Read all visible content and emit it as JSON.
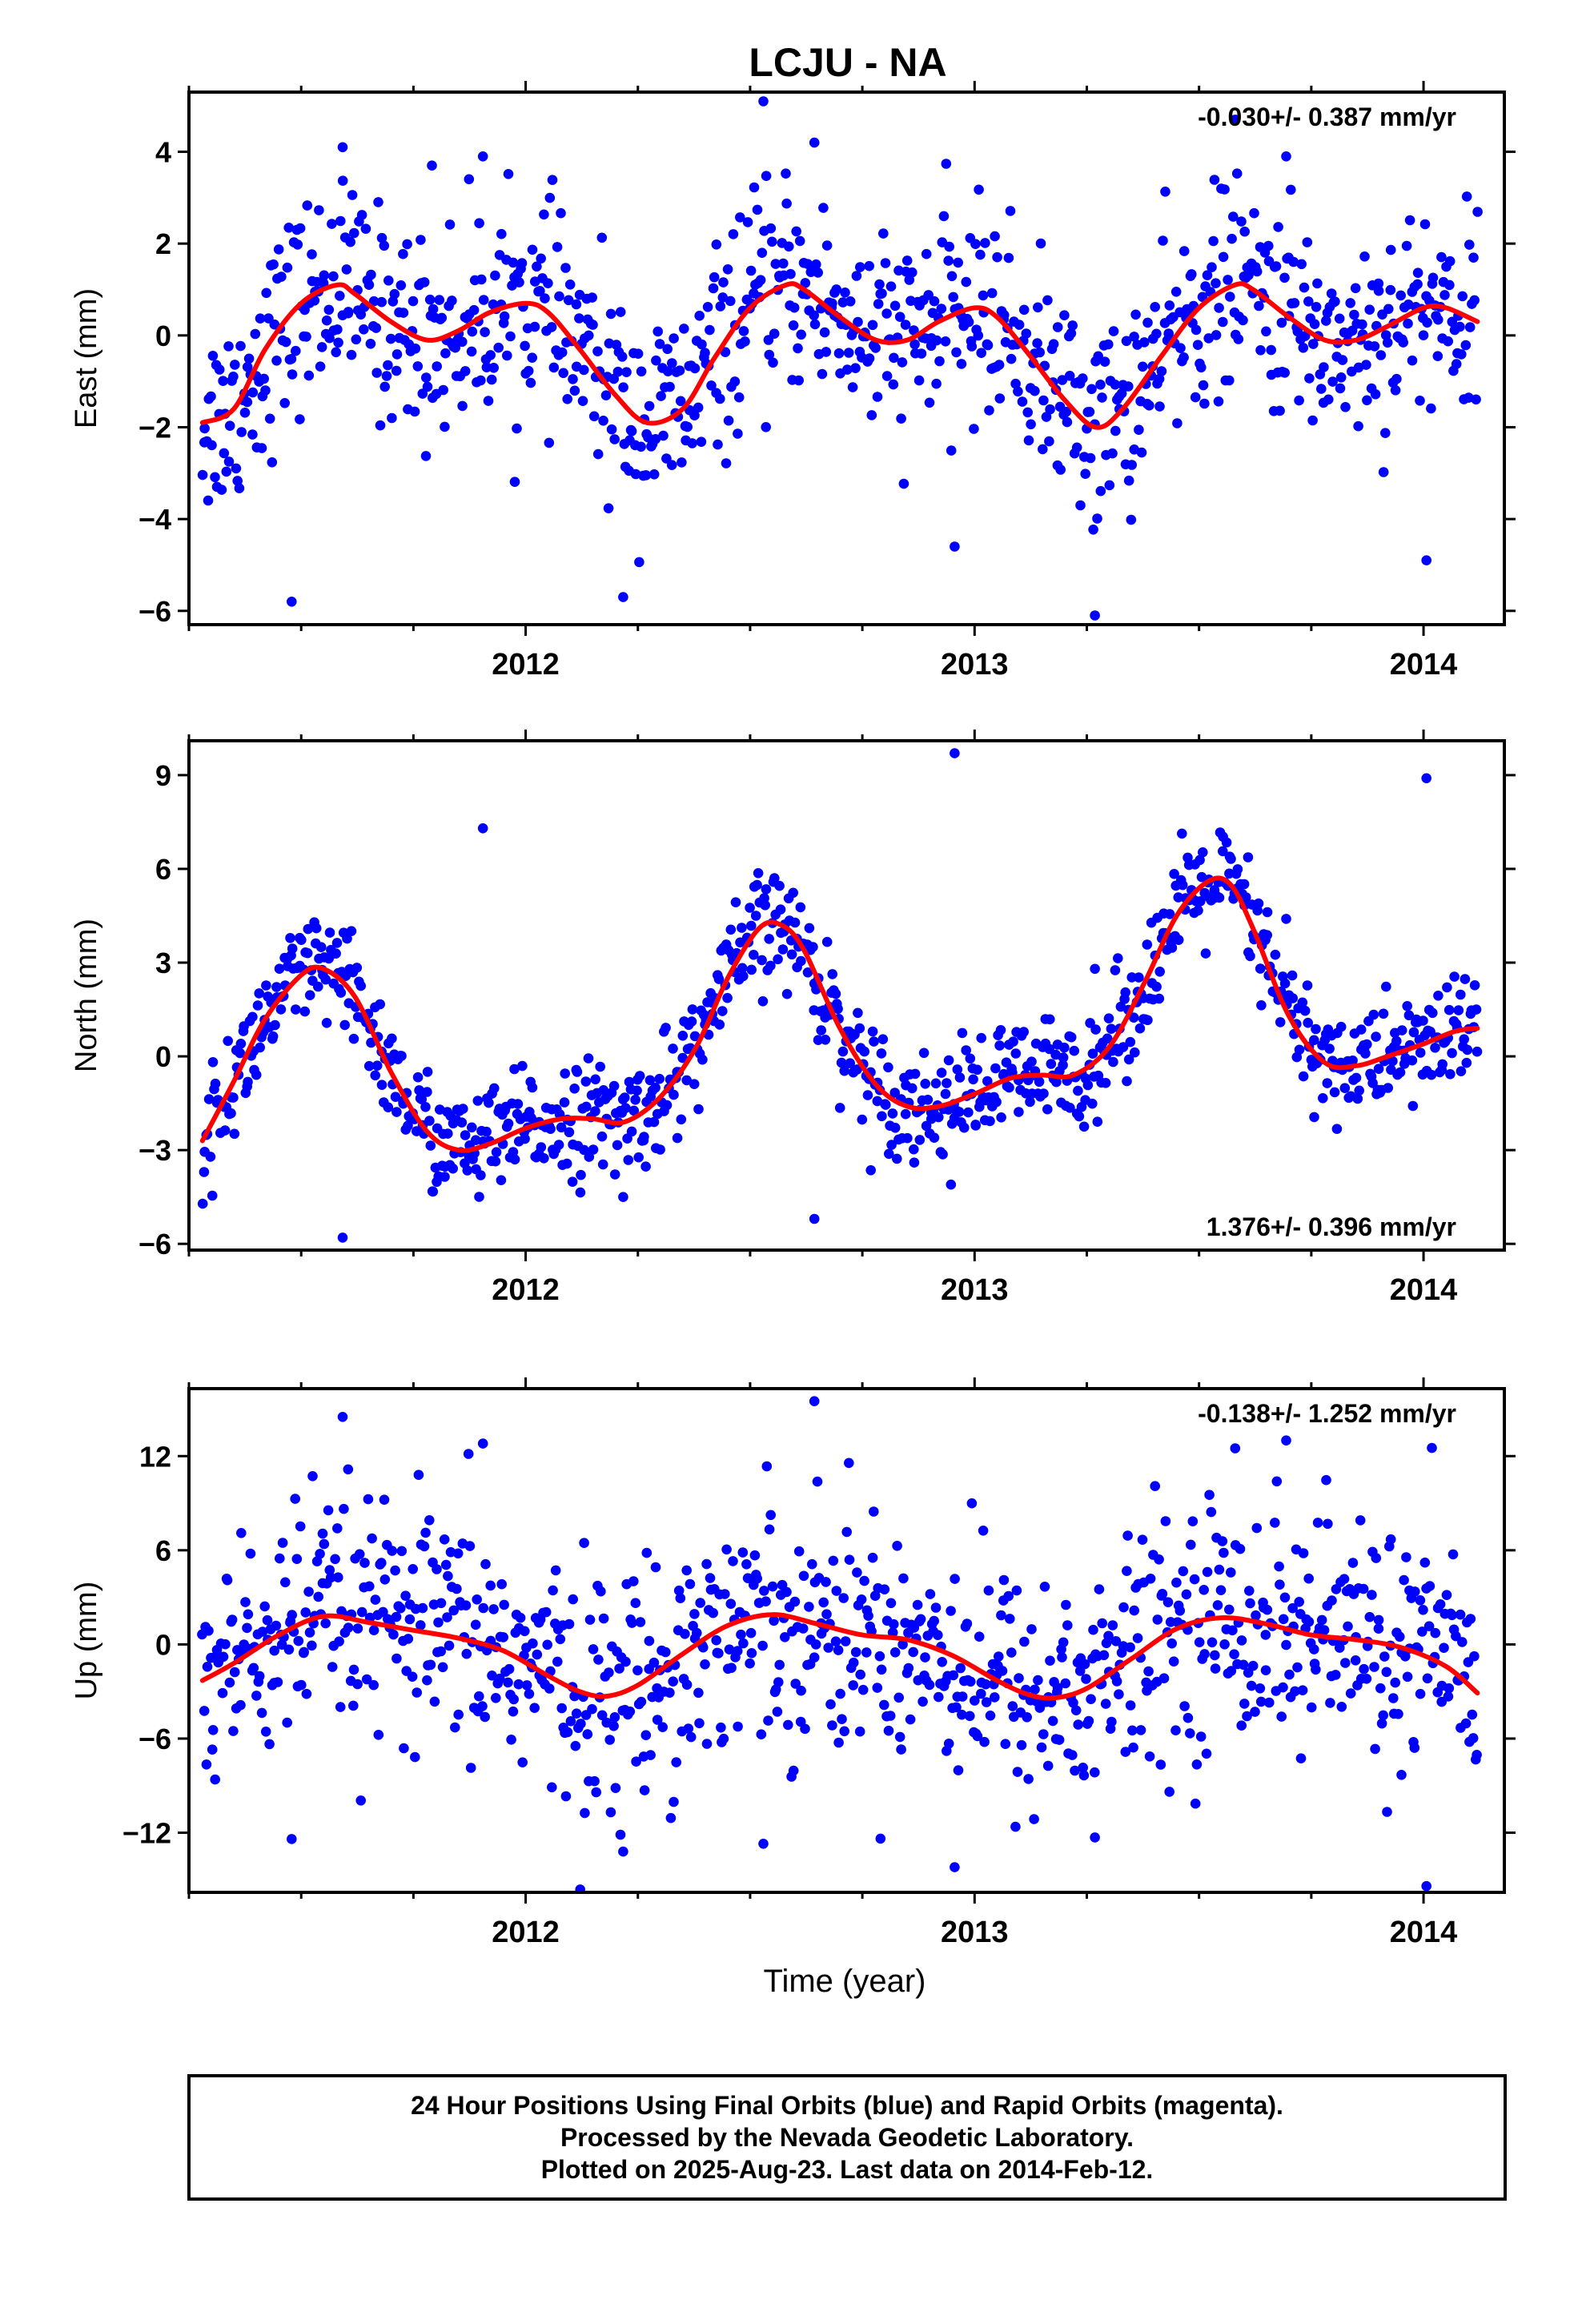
{
  "title": "LCJU - NA",
  "x_axis_label": "Time (year)",
  "footer": {
    "line1": "24 Hour Positions Using Final Orbits (blue) and Rapid Orbits (magenta).",
    "line2": "Processed by the Nevada Geodetic Laboratory.",
    "line3": "Plotted on 2025-Aug-23. Last data on 2014-Feb-12."
  },
  "colors": {
    "points": "#0000ff",
    "fit": "#ff0000",
    "frame": "#000000"
  },
  "chart_data": [
    {
      "type": "scatter",
      "component": "east",
      "ylabel": "East (mm)",
      "rate_label": "-0.030+/- 0.387 mm/yr",
      "rate_position": "top-right",
      "xlim": [
        2011.25,
        2014.18
      ],
      "ylim": [
        -6.3,
        5.3
      ],
      "xticks": [
        "2012",
        "2013",
        "2014"
      ],
      "yticks": [
        "4",
        "2",
        "0",
        "−2",
        "−4",
        "−6"
      ],
      "ytick_values": [
        4,
        2,
        0,
        -2,
        -4,
        -6
      ],
      "grid": false,
      "seasonal_fit": {
        "series": "fit",
        "x": [
          2011.28,
          2011.35,
          2011.42,
          2011.5,
          2011.58,
          2011.62,
          2011.7,
          2011.78,
          2011.85,
          2011.92,
          2012.0,
          2012.05,
          2012.12,
          2012.2,
          2012.27,
          2012.35,
          2012.42,
          2012.5,
          2012.58,
          2012.62,
          2012.7,
          2012.78,
          2012.85,
          2012.92,
          2013.0,
          2013.05,
          2013.12,
          2013.2,
          2013.27,
          2013.33,
          2013.42,
          2013.5,
          2013.58,
          2013.62,
          2013.7,
          2013.78,
          2013.85,
          2013.92,
          2014.0,
          2014.05,
          2014.12
        ],
        "y": [
          -1.9,
          -1.6,
          -0.3,
          0.7,
          1.1,
          0.9,
          0.3,
          -0.1,
          0.1,
          0.5,
          0.7,
          0.5,
          -0.3,
          -1.3,
          -1.9,
          -1.6,
          -0.5,
          0.6,
          1.1,
          1.0,
          0.4,
          -0.1,
          -0.1,
          0.3,
          0.6,
          0.4,
          -0.4,
          -1.4,
          -2.0,
          -1.6,
          -0.4,
          0.6,
          1.1,
          1.0,
          0.4,
          -0.1,
          -0.1,
          0.2,
          0.6,
          0.6,
          0.3
        ]
      },
      "observations": {
        "series": "daily positions",
        "scatter_sd": 1.1,
        "outlier_values": [
          4.1,
          4.2,
          3.9,
          3.9,
          -4.6,
          -4.9,
          -5.7,
          -6.1,
          -5.8,
          5.1,
          4.7,
          3.7
        ]
      }
    },
    {
      "type": "scatter",
      "component": "north",
      "ylabel": "North (mm)",
      "rate_label": "1.376+/- 0.396 mm/yr",
      "rate_position": "bottom-right",
      "xlim": [
        2011.25,
        2014.18
      ],
      "ylim": [
        -6.2,
        10.1
      ],
      "xticks": [
        "2012",
        "2013",
        "2014"
      ],
      "yticks": [
        "9",
        "6",
        "3",
        "0",
        "−3",
        "−6"
      ],
      "ytick_values": [
        9,
        6,
        3,
        0,
        -3,
        -6
      ],
      "grid": false,
      "seasonal_fit": {
        "series": "fit",
        "x": [
          2011.28,
          2011.35,
          2011.42,
          2011.5,
          2011.55,
          2011.62,
          2011.7,
          2011.78,
          2011.85,
          2011.92,
          2012.0,
          2012.08,
          2012.15,
          2012.22,
          2012.3,
          2012.38,
          2012.45,
          2012.52,
          2012.57,
          2012.62,
          2012.7,
          2012.78,
          2012.85,
          2012.92,
          2013.0,
          2013.08,
          2013.15,
          2013.22,
          2013.3,
          2013.38,
          2013.45,
          2013.52,
          2013.57,
          2013.62,
          2013.7,
          2013.78,
          2013.85,
          2013.92,
          2014.0,
          2014.07,
          2014.12
        ],
        "y": [
          -2.7,
          -0.8,
          1.2,
          2.6,
          2.8,
          1.9,
          -0.5,
          -2.4,
          -3.0,
          -2.8,
          -2.3,
          -2.0,
          -2.0,
          -2.1,
          -1.3,
          0.3,
          2.5,
          4.1,
          4.2,
          3.4,
          0.9,
          -0.9,
          -1.6,
          -1.6,
          -1.2,
          -0.7,
          -0.6,
          -0.6,
          0.3,
          2.4,
          4.5,
          5.6,
          5.5,
          4.1,
          1.3,
          -0.2,
          -0.3,
          0.0,
          0.4,
          0.8,
          0.9
        ]
      },
      "observations": {
        "series": "daily positions",
        "scatter_sd": 0.9,
        "outlier_values": [
          -5.8,
          -5.2,
          4.4,
          7.3,
          9.7,
          8.9,
          -4.5,
          2.8
        ]
      }
    },
    {
      "type": "scatter",
      "component": "up",
      "ylabel": "Up (mm)",
      "rate_label": "-0.138+/- 1.252 mm/yr",
      "rate_position": "top-right",
      "xlim": [
        2011.25,
        2014.18
      ],
      "ylim": [
        -15.8,
        16.3
      ],
      "xticks": [
        "2012",
        "2013",
        "2014"
      ],
      "yticks": [
        "12",
        "6",
        "0",
        "−6",
        "−12"
      ],
      "ytick_values": [
        12,
        6,
        0,
        -6,
        -12
      ],
      "grid": false,
      "seasonal_fit": {
        "series": "fit",
        "x": [
          2011.28,
          2011.35,
          2011.45,
          2011.55,
          2011.65,
          2011.75,
          2011.85,
          2011.95,
          2012.05,
          2012.12,
          2012.18,
          2012.25,
          2012.35,
          2012.45,
          2012.55,
          2012.65,
          2012.75,
          2012.85,
          2012.95,
          2013.05,
          2013.12,
          2013.18,
          2013.25,
          2013.35,
          2013.45,
          2013.55,
          2013.65,
          2013.75,
          2013.85,
          2013.95,
          2014.05,
          2014.12
        ],
        "y": [
          -2.3,
          -1.2,
          0.6,
          1.8,
          1.4,
          0.9,
          0.4,
          -0.4,
          -2.0,
          -3.0,
          -3.3,
          -2.6,
          -0.6,
          1.2,
          1.9,
          1.3,
          0.6,
          0.3,
          -0.7,
          -2.3,
          -3.2,
          -3.4,
          -2.8,
          -0.9,
          1.0,
          1.7,
          1.3,
          0.6,
          0.3,
          -0.2,
          -1.4,
          -3.1
        ]
      },
      "observations": {
        "series": "daily positions",
        "scatter_sd": 3.8,
        "outlier_values": [
          14.5,
          15.5,
          13.0,
          12.8,
          -14.2,
          -15.4,
          -13.2,
          -12.3,
          -12.4,
          -12.7,
          12.5
        ]
      }
    }
  ]
}
